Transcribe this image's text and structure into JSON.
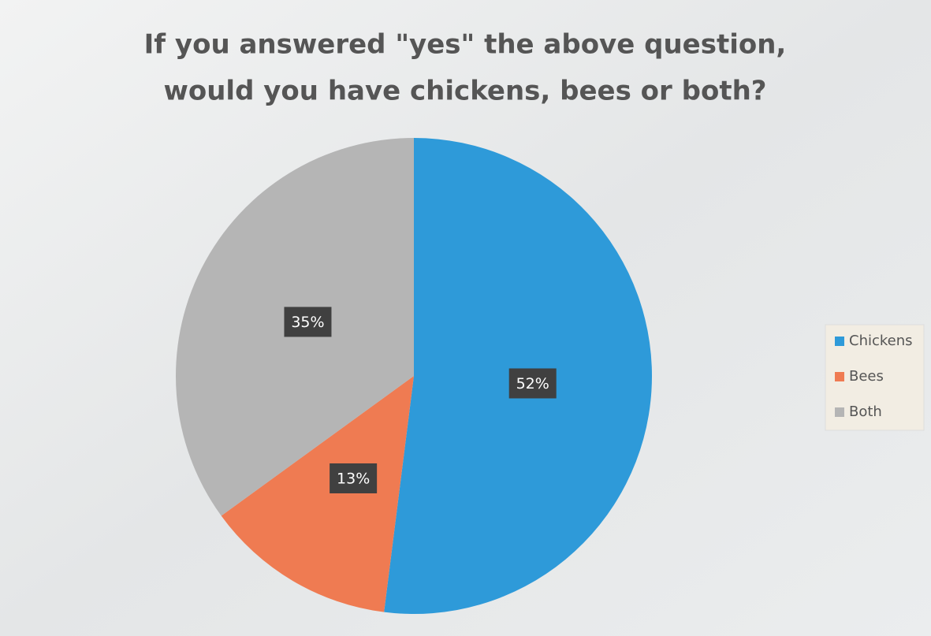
{
  "chart_data": {
    "type": "pie",
    "title": [
      "If you answered \"yes\" the above question,",
      "would you have chickens, bees or both?"
    ],
    "categories": [
      "Chickens",
      "Bees",
      "Both"
    ],
    "values": [
      52,
      13,
      35
    ],
    "value_labels": [
      "52%",
      "13%",
      "35%"
    ],
    "colors": [
      "#2e9ad9",
      "#ef7b52",
      "#b5b5b5"
    ],
    "legend": "right"
  }
}
